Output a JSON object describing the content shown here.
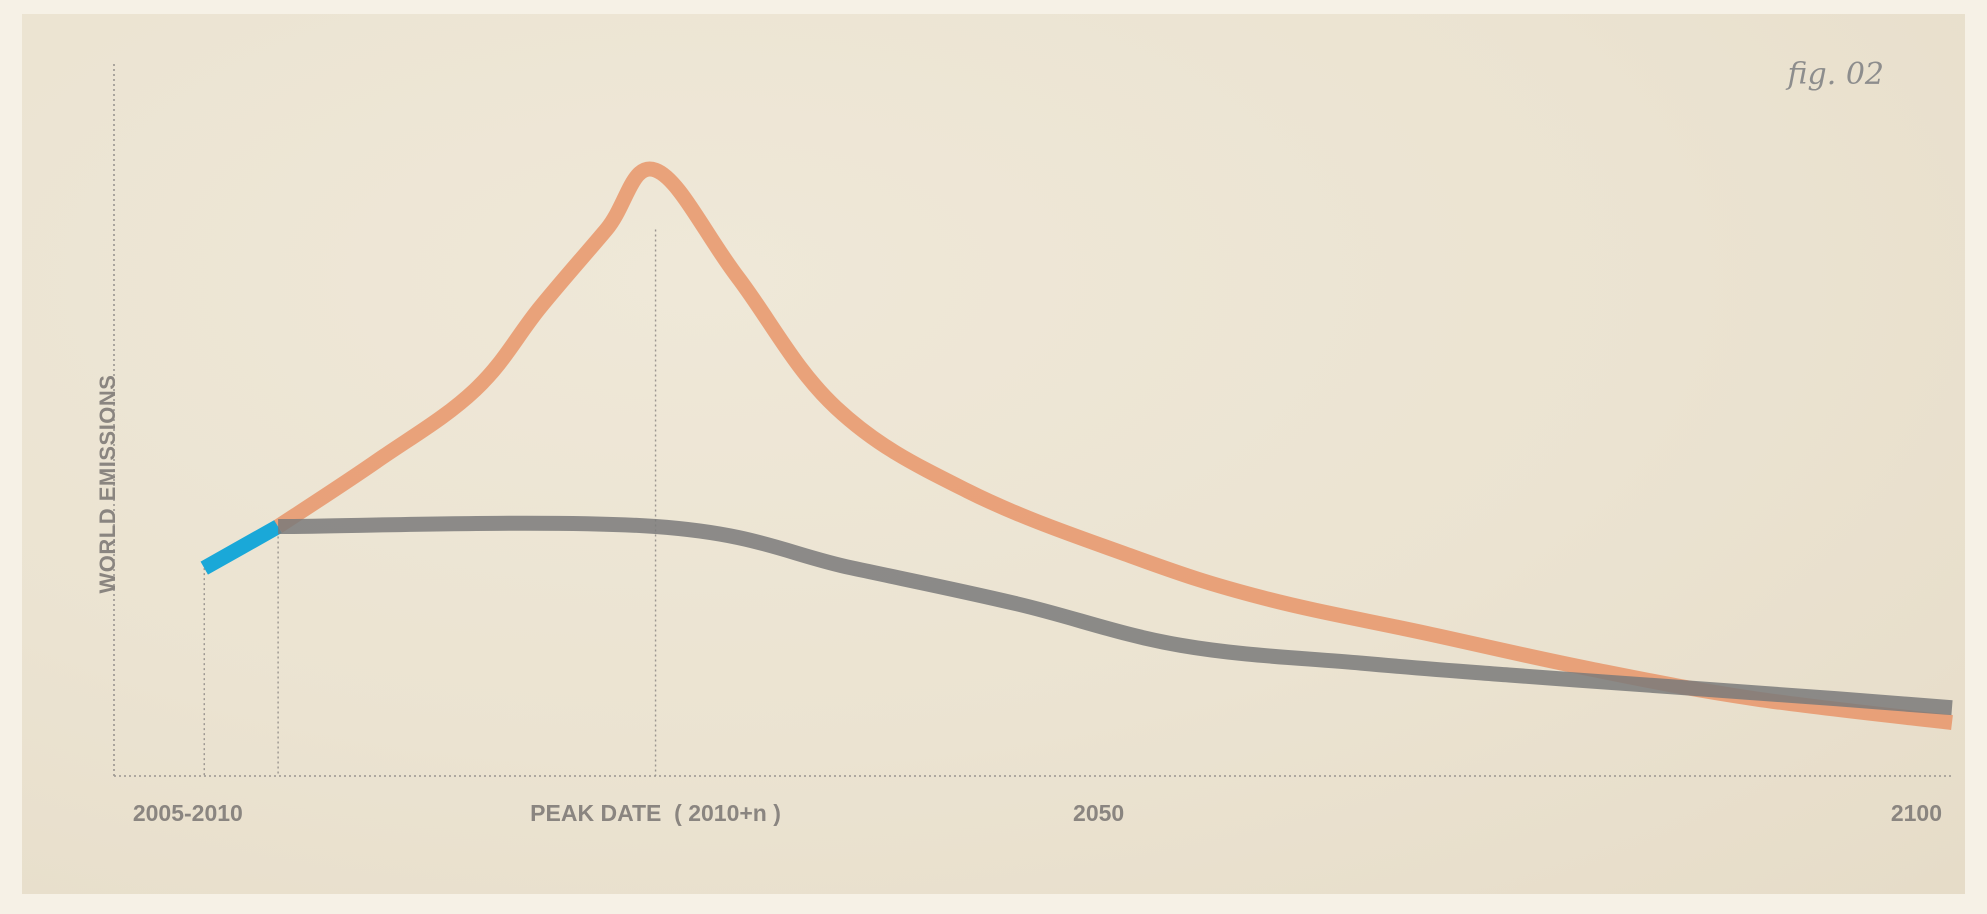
{
  "chart_data": {
    "type": "line",
    "figure_label": "fig. 02",
    "ylabel": "WORLD EMISSIONS",
    "xlabel": "",
    "x_ticks": [
      {
        "x": 0.45,
        "label": "2005-2010"
      },
      {
        "x": 1.0,
        "label": ""
      },
      {
        "x": 3.3,
        "label": "PEAK DATE  ( 2010+n )"
      },
      {
        "x": 6.0,
        "label": "2050"
      },
      {
        "x": 11.0,
        "label": "2100"
      }
    ],
    "xlim": [
      0,
      11.2
    ],
    "ylim": [
      0,
      100
    ],
    "grid": false,
    "series": [
      {
        "color": "#1aa8d8",
        "points": [
          [
            0.55,
            35
          ],
          [
            1.0,
            42
          ]
        ]
      },
      {
        "color": "#e8956a",
        "points": [
          [
            1.0,
            42
          ],
          [
            1.6,
            53
          ],
          [
            2.2,
            65
          ],
          [
            2.6,
            79
          ],
          [
            3.0,
            92
          ],
          [
            3.3,
            102
          ],
          [
            3.8,
            84
          ],
          [
            4.4,
            62
          ],
          [
            5.2,
            48
          ],
          [
            6.2,
            37
          ],
          [
            7.0,
            30
          ],
          [
            8.0,
            24
          ],
          [
            9.0,
            18
          ],
          [
            10.0,
            13
          ],
          [
            11.2,
            9
          ]
        ]
      },
      {
        "color": "#7a7a7a",
        "points": [
          [
            1.0,
            42
          ],
          [
            3.3,
            42
          ],
          [
            4.5,
            35
          ],
          [
            5.5,
            29
          ],
          [
            6.5,
            22
          ],
          [
            7.6,
            19
          ],
          [
            8.5,
            17
          ],
          [
            9.5,
            15
          ],
          [
            10.5,
            13
          ],
          [
            11.2,
            11.5
          ]
        ]
      }
    ],
    "guides": [
      {
        "x": 0.55,
        "y": 35
      },
      {
        "x": 1.0,
        "y": 42
      },
      {
        "x": 3.3,
        "y": 92
      }
    ],
    "colors": {
      "background": "#ede6d6",
      "text": "#8a8580",
      "axis": "#9a9590"
    }
  }
}
